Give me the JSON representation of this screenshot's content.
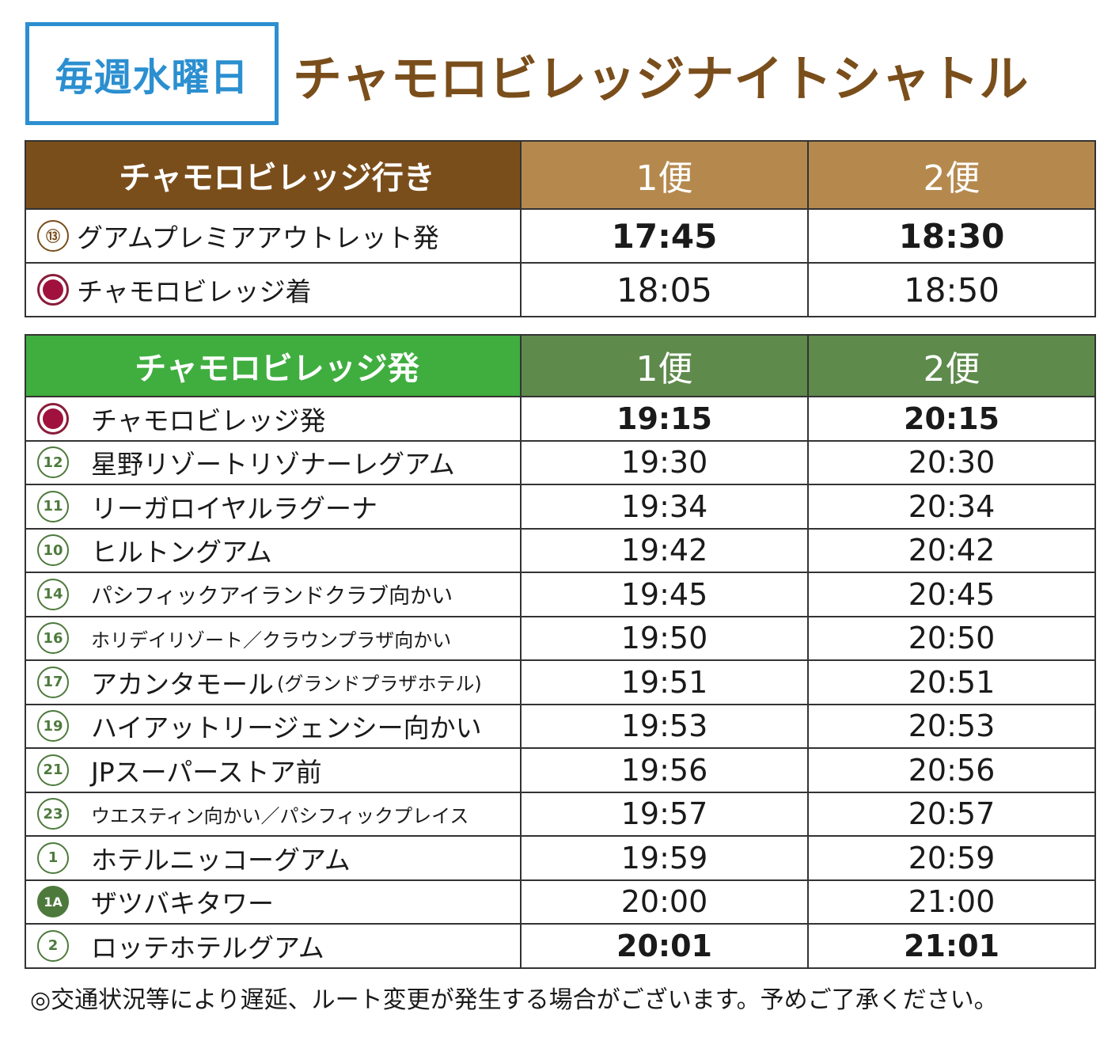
{
  "header": {
    "day_label": "毎週水曜日",
    "title": "チャモロビレッジナイトシャトル"
  },
  "colors": {
    "brown": "#7a4e1b",
    "tan": "#b5894e",
    "green": "#3fae3f",
    "dark_green": "#5e8a4c",
    "blue": "#2b8fd0",
    "village_marker": "#a0123d"
  },
  "outbound": {
    "heading": "チャモロビレッジ行き",
    "columns": [
      "1便",
      "2便"
    ],
    "rows": [
      {
        "marker": "⑬",
        "stop": "グアムプレミアアウトレット発",
        "times": [
          "17:45",
          "18:30"
        ]
      },
      {
        "marker": "village-icon",
        "stop": "チャモロビレッジ着",
        "times": [
          "18:05",
          "18:50"
        ]
      }
    ]
  },
  "return": {
    "heading": "チャモロビレッジ発",
    "columns": [
      "1便",
      "2便"
    ],
    "rows": [
      {
        "marker": "village-icon",
        "stop": "チャモロビレッジ発",
        "times": [
          "19:15",
          "20:15"
        ]
      },
      {
        "marker": "12",
        "stop": "星野リゾートリゾナーレグアム",
        "times": [
          "19:30",
          "20:30"
        ]
      },
      {
        "marker": "11",
        "stop": "リーガロイヤルラグーナ",
        "times": [
          "19:34",
          "20:34"
        ]
      },
      {
        "marker": "10",
        "stop": "ヒルトングアム",
        "times": [
          "19:42",
          "20:42"
        ]
      },
      {
        "marker": "14",
        "stop": "パシフィックアイランドクラブ向かい",
        "times": [
          "19:45",
          "20:45"
        ]
      },
      {
        "marker": "16",
        "stop": "ホリデイリゾート／クラウンプラザ向かい",
        "times": [
          "19:50",
          "20:50"
        ]
      },
      {
        "marker": "17",
        "stop": "アカンタモール",
        "stop_note": "(グランドプラザホテル)",
        "times": [
          "19:51",
          "20:51"
        ]
      },
      {
        "marker": "19",
        "stop": "ハイアットリージェンシー向かい",
        "times": [
          "19:53",
          "20:53"
        ]
      },
      {
        "marker": "21",
        "stop": "JPスーパーストア前",
        "times": [
          "19:56",
          "20:56"
        ]
      },
      {
        "marker": "23",
        "stop": "ウエスティン向かい／パシフィックプレイス",
        "times": [
          "19:57",
          "20:57"
        ]
      },
      {
        "marker": "1",
        "stop": "ホテルニッコーグアム",
        "times": [
          "19:59",
          "20:59"
        ]
      },
      {
        "marker": "1A",
        "stop": "ザツバキタワー",
        "times": [
          "20:00",
          "21:00"
        ]
      },
      {
        "marker": "2",
        "stop": "ロッテホテルグアム",
        "times": [
          "20:01",
          "21:01"
        ]
      }
    ]
  },
  "note": "◎交通状況等により遅延、ルート変更が発生する場合がございます。予めご了承ください。"
}
